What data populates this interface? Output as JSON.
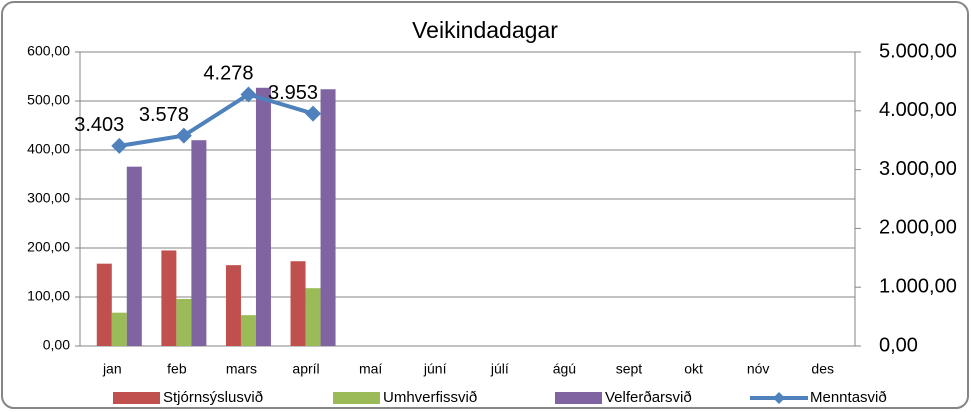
{
  "chart_data": {
    "type": "bar",
    "title": "Veikindadagar",
    "categories": [
      "jan",
      "feb",
      "mars",
      "apríl",
      "maí",
      "júní",
      "júlí",
      "ágú",
      "sept",
      "okt",
      "nóv",
      "des"
    ],
    "series": [
      {
        "name": "Stjórnsýslusvið",
        "color": "#c0504d",
        "values": [
          168,
          195,
          165,
          173,
          null,
          null,
          null,
          null,
          null,
          null,
          null,
          null
        ]
      },
      {
        "name": "Umhverfissvið",
        "color": "#9bbb59",
        "values": [
          68,
          96,
          63,
          118,
          null,
          null,
          null,
          null,
          null,
          null,
          null,
          null
        ]
      },
      {
        "name": "Velferðarsvið",
        "color": "#8064a2",
        "values": [
          366,
          420,
          527,
          524,
          null,
          null,
          null,
          null,
          null,
          null,
          null,
          null
        ]
      },
      {
        "name": "Menntasvið",
        "color": "#4f81bd",
        "type": "line",
        "axis": "y2",
        "values": [
          3403,
          3578,
          4278,
          3953,
          null,
          null,
          null,
          null,
          null,
          null,
          null,
          null
        ],
        "value_labels": [
          "3.403",
          "3.578",
          "4.278",
          "3.953",
          null,
          null,
          null,
          null,
          null,
          null,
          null,
          null
        ]
      }
    ],
    "ylim": [
      0,
      600
    ],
    "yticks": [
      {
        "value": 0,
        "label": "0,00"
      },
      {
        "value": 100,
        "label": "100,00"
      },
      {
        "value": 200,
        "label": "200,00"
      },
      {
        "value": 300,
        "label": "300,00"
      },
      {
        "value": 400,
        "label": "400,00"
      },
      {
        "value": 500,
        "label": "500,00"
      },
      {
        "value": 600,
        "label": "600,00"
      }
    ],
    "y2lim": [
      0,
      5000
    ],
    "y2ticks": [
      {
        "value": 0,
        "label": "0,00"
      },
      {
        "value": 1000,
        "label": "1.000,00"
      },
      {
        "value": 2000,
        "label": "2.000,00"
      },
      {
        "value": 3000,
        "label": "3.000,00"
      },
      {
        "value": 4000,
        "label": "4.000,00"
      },
      {
        "value": 5000,
        "label": "5.000,00"
      }
    ],
    "grid": true,
    "legend": "bottom"
  }
}
